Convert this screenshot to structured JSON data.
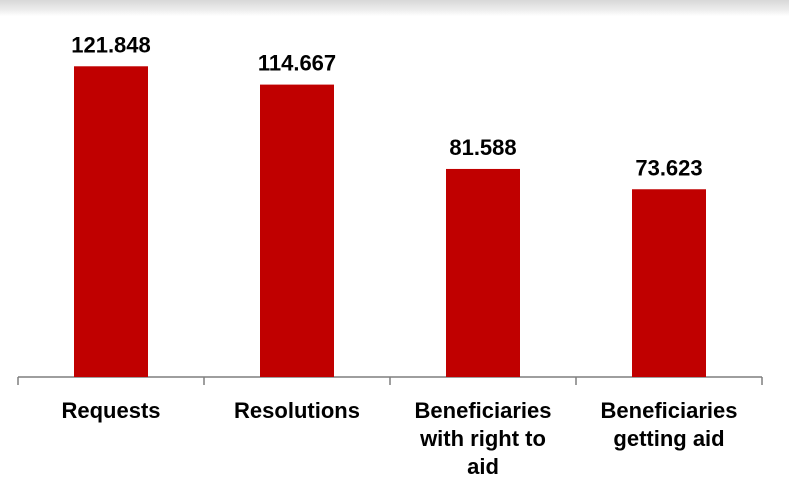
{
  "chart_data": {
    "type": "bar",
    "categories": [
      "Requests",
      "Resolutions",
      "Beneficiaries with right to aid",
      "Beneficiaries getting aid"
    ],
    "category_label_lines": [
      [
        "Requests"
      ],
      [
        "Resolutions"
      ],
      [
        "Beneficiaries",
        "with right to",
        "aid"
      ],
      [
        "Beneficiaries",
        "getting aid"
      ]
    ],
    "values": [
      121848,
      114667,
      81588,
      73623
    ],
    "data_labels": [
      "121.848",
      "114.667",
      "81.588",
      "73.623"
    ],
    "title": "",
    "xlabel": "",
    "ylabel": "",
    "ylim": [
      0,
      140000
    ],
    "grid": false,
    "legend": "none",
    "bar_color": "#c00000"
  }
}
